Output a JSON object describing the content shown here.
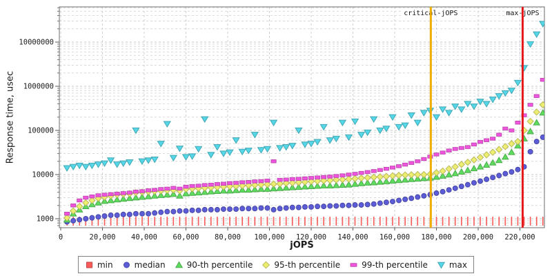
{
  "chart_data": {
    "type": "scatter",
    "title": "",
    "xlabel": "jOPS",
    "ylabel": "Response time, usec",
    "grid": true,
    "legend_position": "bottom",
    "y_axis": {
      "scale": "log",
      "min": 630,
      "max": 60000000,
      "ticks": [
        {
          "v": 1000,
          "label": "1000"
        },
        {
          "v": 10000,
          "label": "10000"
        },
        {
          "v": 100000,
          "label": "100000"
        },
        {
          "v": 1000000,
          "label": "1000000"
        },
        {
          "v": 10000000,
          "label": "10000000"
        }
      ]
    },
    "x_axis": {
      "min": -700,
      "max": 232000,
      "ticks": [
        {
          "v": 0,
          "label": "0"
        },
        {
          "v": 20000,
          "label": "20,000"
        },
        {
          "v": 40000,
          "label": "40,000"
        },
        {
          "v": 60000,
          "label": "60,000"
        },
        {
          "v": 80000,
          "label": "80,000"
        },
        {
          "v": 100000,
          "label": "100,000"
        },
        {
          "v": 120000,
          "label": "120,000"
        },
        {
          "v": 140000,
          "label": "140,000"
        },
        {
          "v": 160000,
          "label": "160,000"
        },
        {
          "v": 180000,
          "label": "180,000"
        },
        {
          "v": 200000,
          "label": "200,000"
        },
        {
          "v": 220000,
          "label": "220,000"
        }
      ]
    },
    "annotations": [
      {
        "label": "critical-jOPS",
        "x": 177300,
        "color": "#efad00"
      },
      {
        "label": "max-jOPS",
        "x": 221300,
        "color": "#e51919"
      }
    ],
    "x_start": 3000,
    "x_step": 3000,
    "x_count": 77,
    "series": [
      {
        "name": "min",
        "marker": "vline",
        "legend_marker": "square",
        "color": "#fa5a5a",
        "values": [
          880,
          880,
          880,
          880,
          880,
          880,
          880,
          880,
          880,
          880,
          880,
          880,
          880,
          880,
          880,
          880,
          880,
          880,
          880,
          880,
          880,
          880,
          880,
          880,
          880,
          880,
          880,
          880,
          880,
          880,
          880,
          880,
          880,
          880,
          880,
          880,
          880,
          880,
          880,
          880,
          880,
          880,
          880,
          880,
          880,
          880,
          880,
          880,
          880,
          880,
          880,
          880,
          880,
          880,
          880,
          880,
          880,
          880,
          880,
          880,
          880,
          880,
          880,
          880,
          880,
          880,
          880,
          880,
          880,
          880,
          880,
          880,
          880,
          880,
          880,
          880,
          880
        ]
      },
      {
        "name": "median",
        "marker": "circle",
        "color": "#5c5cd6",
        "values": [
          850,
          900,
          950,
          1000,
          1050,
          1100,
          1150,
          1200,
          1200,
          1250,
          1250,
          1300,
          1300,
          1300,
          1350,
          1400,
          1450,
          1450,
          1500,
          1500,
          1550,
          1550,
          1600,
          1600,
          1600,
          1650,
          1650,
          1650,
          1700,
          1700,
          1700,
          1750,
          1750,
          1600,
          1700,
          1750,
          1800,
          1800,
          1850,
          1850,
          1900,
          1900,
          1950,
          1950,
          2000,
          2000,
          2050,
          2050,
          2100,
          2150,
          2250,
          2350,
          2450,
          2600,
          2750,
          2900,
          3100,
          3300,
          3500,
          3800,
          4100,
          4500,
          4900,
          5400,
          5900,
          6500,
          7100,
          7800,
          8600,
          9500,
          10500,
          11500,
          13000,
          15000,
          33000,
          56000,
          70000
        ]
      },
      {
        "name": "90-th percentile",
        "marker": "triangle-up",
        "color": "#5fdc5f",
        "values": [
          950,
          1300,
          1600,
          1900,
          2100,
          2300,
          2500,
          2600,
          2700,
          2800,
          2900,
          3000,
          3100,
          3200,
          3300,
          3400,
          3500,
          3600,
          3300,
          3700,
          3800,
          3900,
          4000,
          4100,
          4200,
          4300,
          4300,
          4400,
          4500,
          4500,
          4600,
          4700,
          4700,
          4800,
          4900,
          5000,
          5100,
          5200,
          5300,
          5400,
          5500,
          5600,
          5600,
          5700,
          5800,
          5900,
          6100,
          6300,
          6500,
          6600,
          6800,
          7000,
          7200,
          7400,
          7600,
          7800,
          8000,
          8200,
          8400,
          8800,
          9300,
          9900,
          10600,
          11500,
          12500,
          13700,
          15000,
          16500,
          18500,
          21000,
          25000,
          32000,
          45000,
          65000,
          95000,
          150000,
          250000
        ]
      },
      {
        "name": "95-th percentile",
        "marker": "diamond",
        "color": "#eded72",
        "values": [
          1050,
          1500,
          1900,
          2300,
          2600,
          2900,
          3100,
          3300,
          3500,
          3600,
          3700,
          3900,
          4000,
          4100,
          4200,
          4300,
          4400,
          4500,
          4300,
          4700,
          4800,
          4900,
          5000,
          5100,
          5200,
          5300,
          5400,
          5500,
          5600,
          5700,
          5800,
          5900,
          6000,
          6100,
          6200,
          6400,
          6500,
          6700,
          6800,
          7000,
          7100,
          7300,
          7400,
          7600,
          7700,
          7900,
          8100,
          8300,
          8500,
          8700,
          8900,
          9100,
          9400,
          9600,
          9800,
          9900,
          10000,
          10000,
          10200,
          11000,
          12000,
          13500,
          15000,
          17000,
          19000,
          21500,
          24500,
          28000,
          32000,
          37000,
          43000,
          50000,
          56000,
          100000,
          160000,
          260000,
          380000
        ]
      },
      {
        "name": "99-th percentile",
        "marker": "hbar",
        "color": "#ee55dd",
        "values": [
          1300,
          2000,
          2600,
          3000,
          3200,
          3400,
          3500,
          3600,
          3700,
          3800,
          3900,
          4100,
          4200,
          4400,
          4500,
          4700,
          4800,
          5000,
          4800,
          5300,
          5500,
          5600,
          5800,
          5900,
          6100,
          6200,
          6400,
          6500,
          6700,
          6800,
          7000,
          7100,
          7300,
          20000,
          7600,
          7700,
          7900,
          8000,
          8200,
          8400,
          8600,
          8800,
          9000,
          9300,
          9600,
          10000,
          10400,
          10900,
          11400,
          12000,
          12700,
          13500,
          14400,
          15500,
          16800,
          18300,
          20000,
          22500,
          25500,
          28500,
          31500,
          35000,
          38000,
          40000,
          42000,
          48000,
          55000,
          60000,
          65000,
          80000,
          110000,
          100000,
          150000,
          220000,
          380000,
          600000,
          1400000
        ]
      },
      {
        "name": "max",
        "marker": "triangle-down",
        "color": "#55d7e8",
        "values": [
          14000,
          15000,
          16000,
          15000,
          16000,
          17000,
          18000,
          21000,
          17000,
          18000,
          19000,
          100000,
          20000,
          21000,
          22000,
          50000,
          140000,
          24000,
          39000,
          25000,
          26000,
          38000,
          180000,
          28000,
          42000,
          30000,
          32000,
          60000,
          33000,
          35000,
          80000,
          36000,
          38000,
          150000,
          40000,
          42000,
          45000,
          100000,
          48000,
          50000,
          55000,
          120000,
          60000,
          65000,
          150000,
          70000,
          160000,
          80000,
          90000,
          180000,
          100000,
          110000,
          200000,
          120000,
          130000,
          220000,
          150000,
          250000,
          280000,
          200000,
          300000,
          250000,
          350000,
          300000,
          400000,
          350000,
          450000,
          400000,
          500000,
          600000,
          700000,
          800000,
          1200000,
          2600000,
          9000000,
          15000000,
          26000000
        ]
      }
    ]
  }
}
